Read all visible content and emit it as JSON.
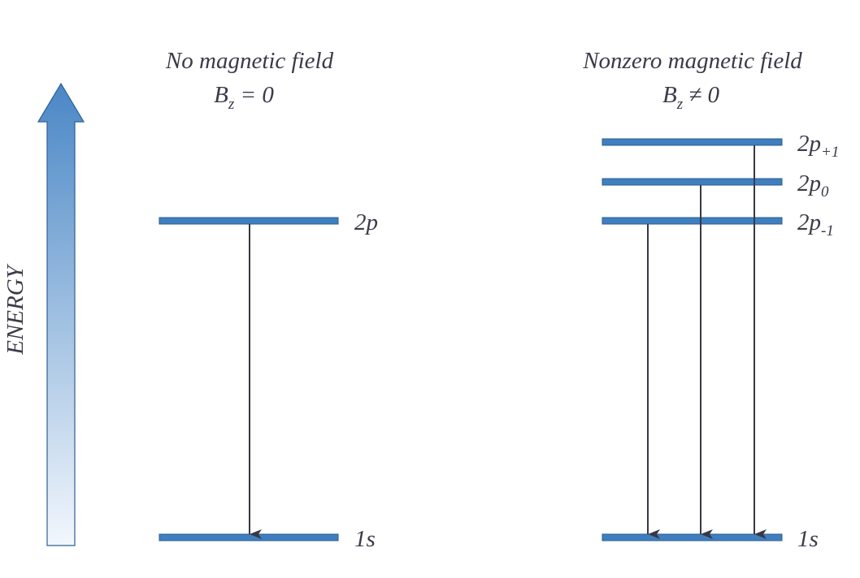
{
  "energy_axis": {
    "label": "ENERGY",
    "gradient_top": "#4a87c6",
    "gradient_bottom": "#f2f7fc",
    "stroke": "#2e5f93"
  },
  "panel_left": {
    "title": "No magnetic field",
    "condition_symbol": "B",
    "condition_subscript": "z",
    "condition_rest": " = 0",
    "levels": [
      {
        "name": "2p",
        "base": "2p",
        "sub": ""
      },
      {
        "name": "1s",
        "base": "1s",
        "sub": ""
      }
    ]
  },
  "panel_right": {
    "title": "Nonzero magnetic field",
    "condition_symbol": "B",
    "condition_subscript": "z",
    "condition_rest": " ≠ 0",
    "levels": [
      {
        "name": "2p+1",
        "base": "2p",
        "sub": "+1"
      },
      {
        "name": "2p0",
        "base": "2p",
        "sub": "0"
      },
      {
        "name": "2p-1",
        "base": "2p",
        "sub": "-1"
      },
      {
        "name": "1s",
        "base": "1s",
        "sub": ""
      }
    ]
  },
  "colors": {
    "level_fill": "#3f7fc0",
    "level_stroke": "#2a5d92",
    "arrow": "#383844",
    "text": "#3a3a4a"
  }
}
